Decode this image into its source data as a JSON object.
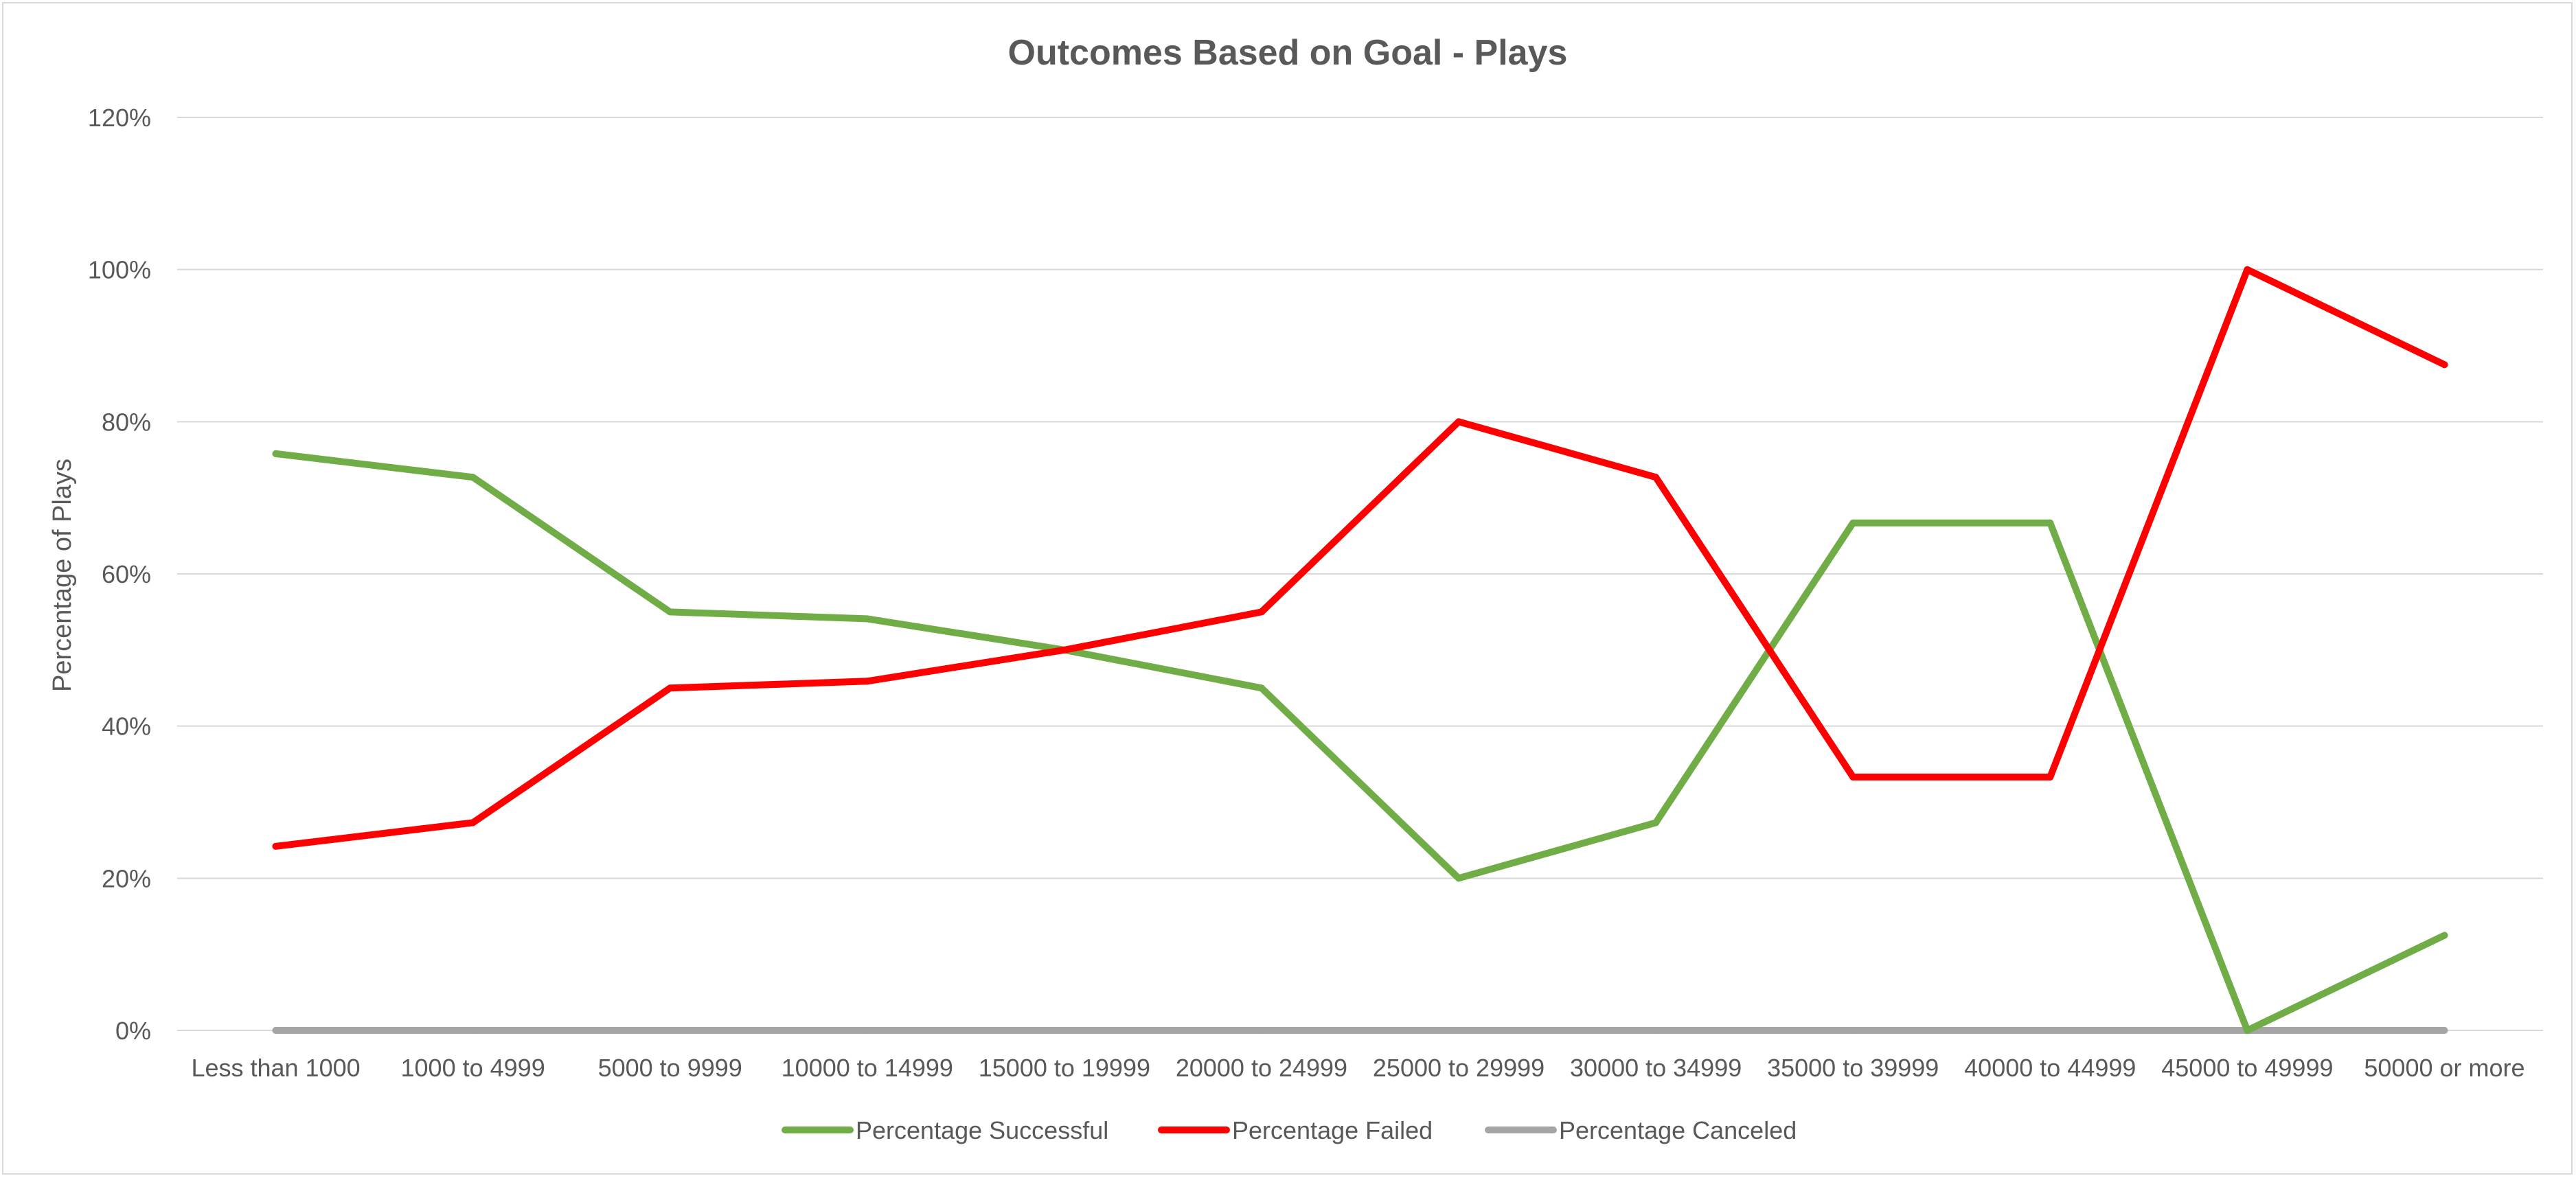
{
  "chart_data": {
    "type": "line",
    "title": "Outcomes Based on Goal - Plays",
    "xlabel": "",
    "ylabel": "Percentage of Plays",
    "ylim": [
      0,
      1.2
    ],
    "ytick_step": 0.2,
    "ytick_labels": [
      "0%",
      "20%",
      "40%",
      "60%",
      "80%",
      "100%",
      "120%"
    ],
    "categories": [
      "Less than 1000",
      "1000 to  4999",
      "5000 to 9999",
      "10000 to 14999",
      "15000 to 19999",
      "20000 to 24999",
      "25000 to 29999",
      "30000 to 34999",
      "35000 to 39999",
      "40000 to 44999",
      "45000 to 49999",
      "50000 or more"
    ],
    "grid": true,
    "legend": "bottom",
    "series": [
      {
        "name": "Percentage Successful",
        "color": "#70ad47",
        "values": [
          0.758,
          0.727,
          0.55,
          0.541,
          0.5,
          0.45,
          0.2,
          0.273,
          0.667,
          0.667,
          0.0,
          0.125
        ]
      },
      {
        "name": "Percentage Failed",
        "color": "#ff0000",
        "values": [
          0.242,
          0.273,
          0.45,
          0.459,
          0.5,
          0.55,
          0.8,
          0.727,
          0.333,
          0.333,
          1.0,
          0.875
        ]
      },
      {
        "name": "Percentage Canceled",
        "color": "#a5a5a5",
        "values": [
          0,
          0,
          0,
          0,
          0,
          0,
          0,
          0,
          0,
          0,
          0,
          0
        ]
      }
    ]
  }
}
